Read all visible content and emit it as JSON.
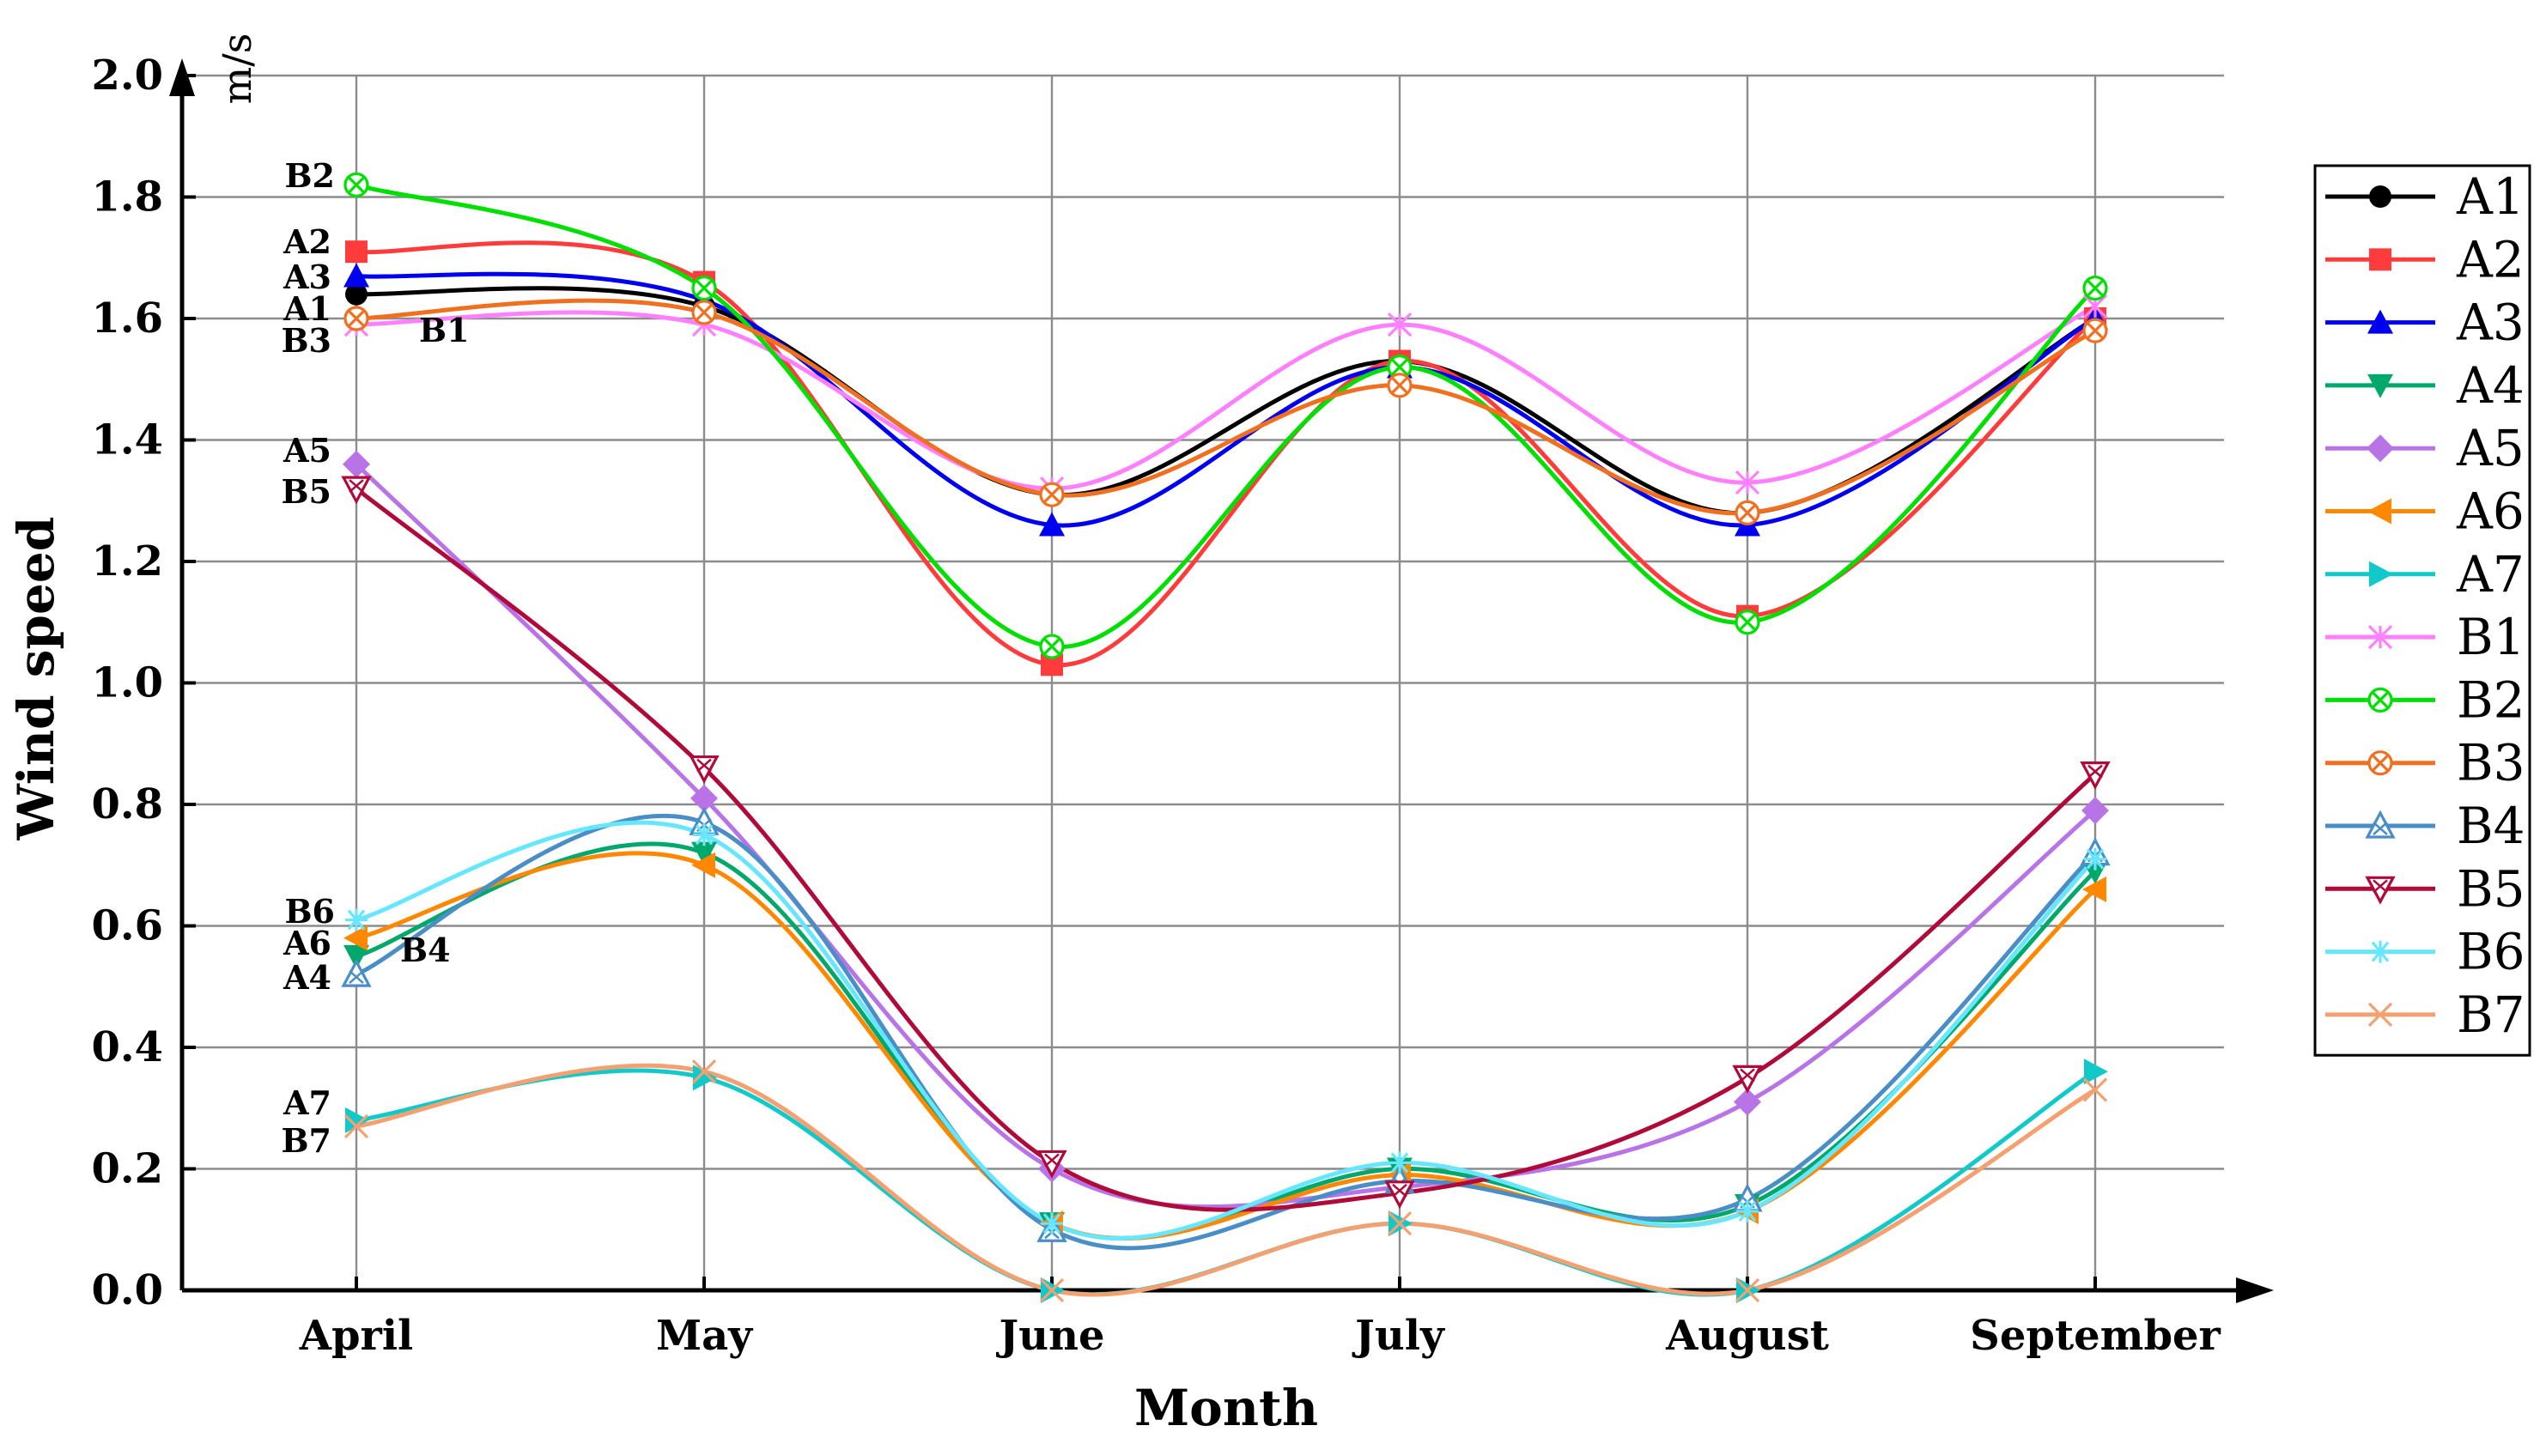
{
  "chart_data": {
    "type": "line",
    "title": "",
    "xlabel": "Month",
    "ylabel": "Wind speed",
    "y_unit": "m/s",
    "ylim": [
      0,
      2.0
    ],
    "y_ticks": [
      "0.0",
      "0.2",
      "0.4",
      "0.6",
      "0.8",
      "1.0",
      "1.2",
      "1.4",
      "1.6",
      "1.8",
      "2.0"
    ],
    "categories": [
      "April",
      "May",
      "June",
      "July",
      "August",
      "September"
    ],
    "grid": true,
    "legend_position": "right",
    "series": [
      {
        "name": "A1",
        "color": "#000000",
        "marker": "circle",
        "values": [
          1.64,
          1.62,
          1.31,
          1.53,
          1.28,
          1.6
        ]
      },
      {
        "name": "A2",
        "color": "#ff3b3b",
        "marker": "square",
        "values": [
          1.71,
          1.66,
          1.03,
          1.53,
          1.11,
          1.6
        ]
      },
      {
        "name": "A3",
        "color": "#0000f0",
        "marker": "triangle-up",
        "values": [
          1.67,
          1.63,
          1.26,
          1.52,
          1.26,
          1.6
        ]
      },
      {
        "name": "A4",
        "color": "#00a86b",
        "marker": "triangle-down",
        "values": [
          0.55,
          0.72,
          0.11,
          0.2,
          0.14,
          0.69
        ]
      },
      {
        "name": "A5",
        "color": "#b873e6",
        "marker": "diamond",
        "values": [
          1.36,
          0.81,
          0.2,
          0.17,
          0.31,
          0.79
        ]
      },
      {
        "name": "A6",
        "color": "#ff8800",
        "marker": "triangle-left",
        "values": [
          0.58,
          0.7,
          0.11,
          0.19,
          0.13,
          0.66
        ]
      },
      {
        "name": "A7",
        "color": "#12c9c9",
        "marker": "triangle-right",
        "values": [
          0.28,
          0.35,
          0.0,
          0.11,
          0.0,
          0.36
        ]
      },
      {
        "name": "B1",
        "color": "#ff80ff",
        "marker": "star-x",
        "values": [
          1.59,
          1.59,
          1.32,
          1.59,
          1.33,
          1.62
        ]
      },
      {
        "name": "B2",
        "color": "#00e000",
        "marker": "circle-x",
        "values": [
          1.82,
          1.65,
          1.06,
          1.52,
          1.1,
          1.65
        ]
      },
      {
        "name": "B3",
        "color": "#f07020",
        "marker": "circle-x",
        "values": [
          1.6,
          1.61,
          1.31,
          1.49,
          1.28,
          1.58
        ]
      },
      {
        "name": "B4",
        "color": "#4a8ec8",
        "marker": "star-triangle",
        "values": [
          0.52,
          0.77,
          0.1,
          0.18,
          0.15,
          0.72
        ]
      },
      {
        "name": "B5",
        "color": "#b00a3a",
        "marker": "hourglass",
        "values": [
          1.32,
          0.86,
          0.21,
          0.16,
          0.35,
          0.85
        ]
      },
      {
        "name": "B6",
        "color": "#66e6ff",
        "marker": "asterisk",
        "values": [
          0.61,
          0.75,
          0.11,
          0.21,
          0.13,
          0.71
        ]
      },
      {
        "name": "B7",
        "color": "#f4a070",
        "marker": "x",
        "values": [
          0.27,
          0.36,
          0.0,
          0.11,
          0.0,
          0.33
        ]
      }
    ],
    "annotations": [
      {
        "text": "B2",
        "series": "B2",
        "category": "April"
      },
      {
        "text": "A2",
        "series": "A2",
        "category": "April"
      },
      {
        "text": "A3",
        "series": "A3",
        "category": "April"
      },
      {
        "text": "A1",
        "series": "A1",
        "category": "April"
      },
      {
        "text": "B3",
        "series": "B3",
        "category": "April"
      },
      {
        "text": "B1",
        "series": "B1",
        "category": "April"
      },
      {
        "text": "A5",
        "series": "A5",
        "category": "April"
      },
      {
        "text": "B5",
        "series": "B5",
        "category": "April"
      },
      {
        "text": "B6",
        "series": "B6",
        "category": "April"
      },
      {
        "text": "A6",
        "series": "A6",
        "category": "April"
      },
      {
        "text": "B4",
        "series": "B4",
        "category": "April"
      },
      {
        "text": "A4",
        "series": "A4",
        "category": "April"
      },
      {
        "text": "A7",
        "series": "A7",
        "category": "April"
      },
      {
        "text": "B7",
        "series": "B7",
        "category": "April"
      }
    ]
  }
}
